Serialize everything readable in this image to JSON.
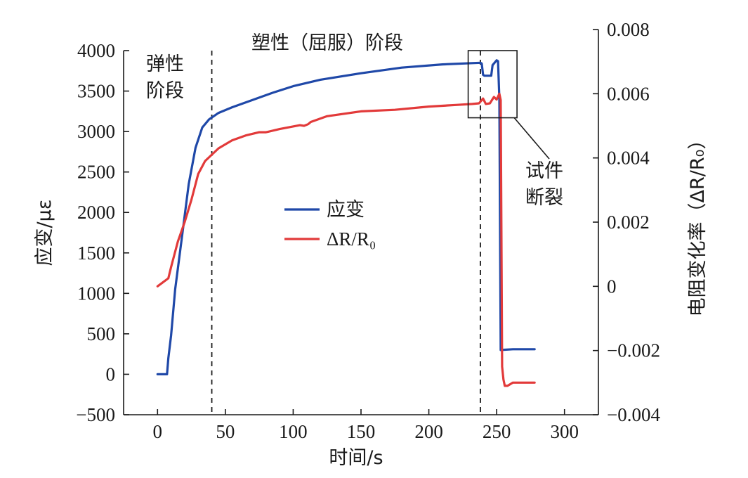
{
  "chart_data": {
    "type": "line",
    "xlabel": "时间/s",
    "ylabel_left": "应变/με",
    "ylabel_right": "电阻变化率（ΔR/R₀）",
    "xlim": [
      -25,
      325
    ],
    "ylim_left": [
      -500,
      4000
    ],
    "ylim_right": [
      -0.004,
      0.008
    ],
    "x_ticks": [
      0,
      50,
      100,
      150,
      200,
      250,
      300
    ],
    "y_ticks_left": [
      -500,
      0,
      500,
      1000,
      1500,
      2000,
      2500,
      3000,
      3500,
      4000
    ],
    "y_ticks_right": [
      -0.004,
      -0.002,
      0,
      0.002,
      0.004,
      0.006,
      0.008
    ],
    "y_tick_labels_left": [
      "−500",
      "0",
      "500",
      "1000",
      "1500",
      "2000",
      "2500",
      "3000",
      "3500",
      "4000"
    ],
    "y_tick_labels_right": [
      "−0.004",
      "−0.002",
      "0",
      "0.002",
      "0.004",
      "0.006",
      "0.008"
    ],
    "grid": false,
    "legend_position": "center-left",
    "series": [
      {
        "name": "应变",
        "axis": "left",
        "color": "#1f48a8",
        "x": [
          0,
          7,
          8,
          10,
          13,
          18,
          23,
          28,
          33,
          38,
          45,
          55,
          70,
          85,
          100,
          120,
          150,
          180,
          210,
          238,
          239,
          240,
          241,
          246,
          247,
          250,
          251,
          252,
          253,
          262,
          278
        ],
        "y": [
          0,
          0,
          200,
          480,
          1050,
          1700,
          2350,
          2800,
          3050,
          3150,
          3230,
          3300,
          3390,
          3480,
          3560,
          3640,
          3720,
          3790,
          3830,
          3850,
          3840,
          3700,
          3690,
          3690,
          3820,
          3880,
          3870,
          3400,
          300,
          310,
          310
        ]
      },
      {
        "name": "ΔR/R₀",
        "axis": "right",
        "color": "#e23a3a",
        "x": [
          0,
          8,
          10,
          15,
          20,
          25,
          30,
          35,
          40,
          45,
          55,
          65,
          75,
          80,
          90,
          105,
          108,
          111,
          113,
          125,
          150,
          175,
          200,
          220,
          232,
          237,
          240,
          242,
          245,
          248,
          250,
          252,
          253,
          254,
          255,
          256,
          258,
          262,
          270,
          278
        ],
        "y": [
          0,
          0.00025,
          0.0006,
          0.0014,
          0.002,
          0.0027,
          0.0035,
          0.0039,
          0.0041,
          0.0043,
          0.00455,
          0.0047,
          0.0048,
          0.0048,
          0.0049,
          0.00502,
          0.005,
          0.00505,
          0.00512,
          0.0053,
          0.00545,
          0.0055,
          0.0056,
          0.00565,
          0.00568,
          0.0057,
          0.00585,
          0.00568,
          0.0057,
          0.0059,
          0.00582,
          0.006,
          0.0058,
          -0.0025,
          -0.0029,
          -0.0031,
          -0.0031,
          -0.003,
          -0.003,
          -0.003
        ]
      }
    ],
    "annotations": {
      "elastic_stage_line1": "弹性",
      "elastic_stage_line2": "阶段",
      "plastic_stage": "塑性（屈服）阶段",
      "fracture_line1": "试件",
      "fracture_line2": "断裂",
      "elastic_boundary_x": 40,
      "plastic_boundary_x": 238,
      "fracture_box_x": [
        229,
        265
      ],
      "fracture_box_y_left": [
        3170,
        4000
      ]
    }
  }
}
